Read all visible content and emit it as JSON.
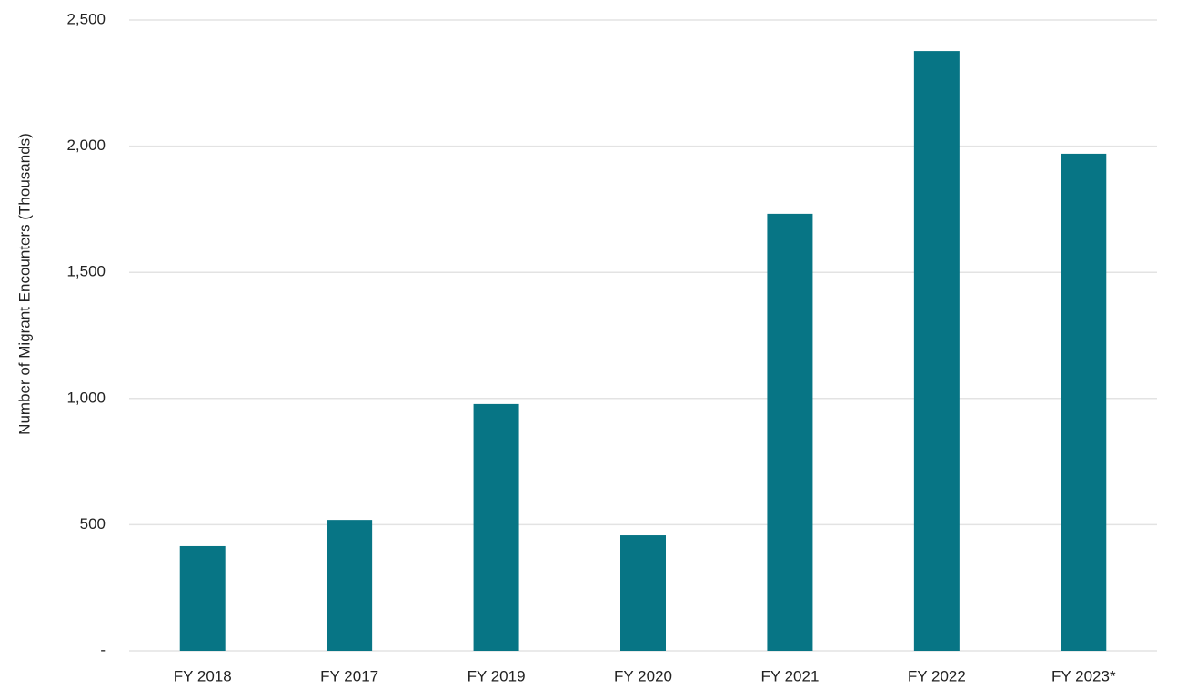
{
  "chart_data": {
    "type": "bar",
    "y_label": "Number of Migrant Encounters (Thousands)",
    "categories": [
      "FY 2018",
      "FY 2017",
      "FY 2019",
      "FY 2020",
      "FY 2021",
      "FY 2022",
      "FY 2023*"
    ],
    "values": [
      415,
      519,
      978,
      458,
      1732,
      2377,
      1970
    ],
    "color": "#077585",
    "ylim": [
      0,
      2500
    ],
    "yticks": [
      {
        "value": 0,
        "label": "-"
      },
      500,
      {
        "value": 1000,
        "label": "1,000"
      },
      {
        "value": 1500,
        "label": "1,500"
      },
      {
        "value": 2000,
        "label": "2,000"
      },
      {
        "value": 2500,
        "label": "2,500"
      }
    ],
    "grid": true
  }
}
